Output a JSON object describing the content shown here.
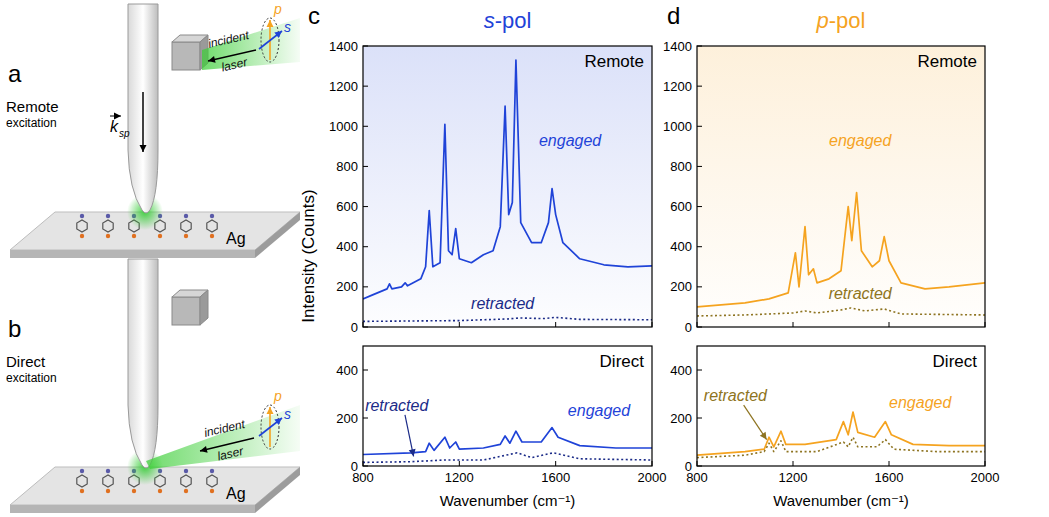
{
  "diagram": {
    "panels": [
      {
        "letter": "a",
        "label": "Remote",
        "sublabel": "excitation",
        "beam": "incident laser",
        "pol_p": "p",
        "pol_s": "s",
        "vector": "k",
        "vector_sub": "sp",
        "substrate": "Ag"
      },
      {
        "letter": "b",
        "label": "Direct",
        "sublabel": "excitation",
        "beam": "incident laser",
        "pol_p": "p",
        "pol_s": "s",
        "substrate": "Ag"
      }
    ]
  },
  "figure": {
    "y_label": "Intensity (Counts)",
    "panels": [
      {
        "letter": "c",
        "heading": "s-pol",
        "color": "#1f43d8"
      },
      {
        "letter": "d",
        "heading": "p-pol",
        "color": "#f5a31f"
      }
    ]
  },
  "chart_data": [
    {
      "type": "line",
      "title": "Remote",
      "xlim": [
        800,
        2000
      ],
      "xticks": [
        800,
        1200,
        1600,
        2000
      ],
      "ylim": [
        0,
        1400
      ],
      "yticks": [
        0,
        200,
        400,
        600,
        800,
        1000,
        1200,
        1400
      ],
      "tick_labels": "y",
      "series": [
        {
          "name": "engaged",
          "color": "#1f43d8",
          "line_style": "solid",
          "label_at": [
            1660,
            900
          ],
          "x": [
            800,
            840,
            880,
            900,
            910,
            920,
            960,
            975,
            985,
            1040,
            1060,
            1075,
            1090,
            1120,
            1140,
            1155,
            1170,
            1185,
            1200,
            1250,
            1300,
            1340,
            1370,
            1390,
            1405,
            1420,
            1435,
            1455,
            1500,
            1540,
            1570,
            1585,
            1600,
            1630,
            1700,
            1800,
            1900,
            2000
          ],
          "values": [
            140,
            160,
            180,
            190,
            215,
            190,
            200,
            220,
            205,
            240,
            300,
            580,
            300,
            320,
            1010,
            380,
            360,
            490,
            340,
            320,
            360,
            380,
            500,
            1100,
            560,
            620,
            1330,
            520,
            420,
            420,
            520,
            690,
            560,
            420,
            340,
            310,
            300,
            305
          ]
        },
        {
          "name": "retracted",
          "color": "#1b2b88",
          "line_style": "dotted",
          "label_at": [
            1380,
            90
          ],
          "x": [
            800,
            1000,
            1200,
            1400,
            1450,
            1550,
            1600,
            1700,
            2000
          ],
          "values": [
            28,
            30,
            32,
            40,
            45,
            42,
            48,
            38,
            36
          ]
        }
      ]
    },
    {
      "type": "line",
      "title": "Direct",
      "xlim": [
        800,
        2000
      ],
      "xticks": [
        800,
        1200,
        1600,
        2000
      ],
      "ylim": [
        0,
        500
      ],
      "yticks": [
        0,
        200,
        400
      ],
      "x_label": "Wavenumber (cm⁻¹)",
      "series": [
        {
          "name": "engaged",
          "color": "#1f43d8",
          "line_style": "solid",
          "label_at": [
            1780,
            210
          ],
          "x": [
            800,
            1000,
            1060,
            1075,
            1095,
            1140,
            1160,
            1185,
            1200,
            1300,
            1370,
            1390,
            1410,
            1435,
            1460,
            1540,
            1585,
            1610,
            1700,
            1850,
            2000
          ],
          "values": [
            48,
            55,
            60,
            95,
            65,
            120,
            75,
            100,
            70,
            75,
            90,
            125,
            95,
            145,
            100,
            100,
            160,
            120,
            85,
            75,
            75
          ]
        },
        {
          "name": "retracted",
          "color": "#1b2b88",
          "line_style": "dotted",
          "label_at": [
            940,
            230
          ],
          "arrow_to": [
            1010,
            40
          ],
          "x": [
            800,
            1000,
            1140,
            1300,
            1440,
            1500,
            1590,
            1700,
            2000
          ],
          "values": [
            15,
            18,
            25,
            25,
            55,
            35,
            55,
            30,
            25
          ]
        }
      ]
    },
    {
      "type": "line",
      "title": "Remote",
      "xlim": [
        800,
        2000
      ],
      "xticks": [
        800,
        1200,
        1600,
        2000
      ],
      "ylim": [
        0,
        1400
      ],
      "yticks": [
        0,
        200,
        400,
        600,
        800,
        1000,
        1200,
        1400
      ],
      "tick_labels": "y",
      "series": [
        {
          "name": "engaged",
          "color": "#f5a31f",
          "line_style": "solid",
          "label_at": [
            1480,
            900
          ],
          "x": [
            800,
            900,
            1000,
            1100,
            1180,
            1210,
            1225,
            1250,
            1265,
            1285,
            1300,
            1350,
            1400,
            1430,
            1445,
            1465,
            1485,
            1530,
            1560,
            1580,
            1600,
            1650,
            1750,
            1850,
            2000
          ],
          "values": [
            100,
            110,
            120,
            140,
            170,
            370,
            200,
            500,
            260,
            290,
            220,
            240,
            280,
            600,
            430,
            670,
            380,
            300,
            330,
            450,
            330,
            220,
            190,
            200,
            220
          ]
        },
        {
          "name": "retracted",
          "color": "#8e7421",
          "line_style": "dotted",
          "label_at": [
            1480,
            140
          ],
          "x": [
            800,
            1000,
            1200,
            1250,
            1300,
            1400,
            1440,
            1500,
            1580,
            1650,
            2000
          ],
          "values": [
            55,
            60,
            70,
            80,
            70,
            85,
            95,
            80,
            90,
            65,
            60
          ]
        }
      ]
    },
    {
      "type": "line",
      "title": "Direct",
      "xlim": [
        800,
        2000
      ],
      "xticks": [
        800,
        1200,
        1600,
        2000
      ],
      "ylim": [
        0,
        500
      ],
      "yticks": [
        0,
        200,
        400
      ],
      "x_label": "Wavenumber (cm⁻¹)",
      "series": [
        {
          "name": "engaged",
          "color": "#f5a31f",
          "line_style": "solid",
          "label_at": [
            1730,
            240
          ],
          "x": [
            800,
            1000,
            1080,
            1100,
            1120,
            1150,
            1170,
            1250,
            1380,
            1410,
            1430,
            1450,
            1470,
            1540,
            1585,
            1610,
            1700,
            1850,
            2000
          ],
          "values": [
            45,
            60,
            70,
            120,
            80,
            145,
            90,
            90,
            110,
            185,
            130,
            225,
            140,
            120,
            185,
            130,
            90,
            85,
            85
          ]
        },
        {
          "name": "retracted",
          "color": "#8e7421",
          "line_style": "dotted",
          "label_at": [
            960,
            270
          ],
          "arrow_to": [
            1090,
            110
          ],
          "x": [
            800,
            1000,
            1080,
            1100,
            1120,
            1150,
            1170,
            1300,
            1410,
            1430,
            1450,
            1470,
            1550,
            1585,
            1620,
            1800,
            2000
          ],
          "values": [
            35,
            45,
            60,
            95,
            60,
            105,
            60,
            60,
            100,
            80,
            120,
            80,
            80,
            110,
            70,
            60,
            60
          ]
        }
      ]
    }
  ]
}
